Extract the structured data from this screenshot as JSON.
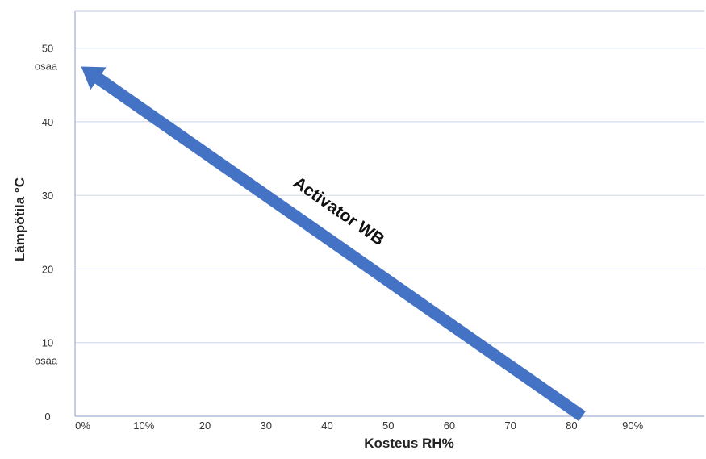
{
  "chart_data": {
    "type": "line",
    "title": "",
    "xlabel": "Kosteus RH%",
    "ylabel": "Lämpötila °C",
    "x_ticks": [
      {
        "value": 0,
        "label": "0%"
      },
      {
        "value": 10,
        "label": "10%"
      },
      {
        "value": 20,
        "label": "20"
      },
      {
        "value": 30,
        "label": "30"
      },
      {
        "value": 40,
        "label": "40"
      },
      {
        "value": 50,
        "label": "50"
      },
      {
        "value": 60,
        "label": "60"
      },
      {
        "value": 70,
        "label": "70"
      },
      {
        "value": 80,
        "label": "80"
      },
      {
        "value": 90,
        "label": "90%"
      }
    ],
    "y_ticks": [
      {
        "value": 0,
        "label": "0"
      },
      {
        "value": 10,
        "label": "10"
      },
      {
        "value": 20,
        "label": "20"
      },
      {
        "value": 30,
        "label": "30"
      },
      {
        "value": 40,
        "label": "40"
      },
      {
        "value": 50,
        "label": "50"
      }
    ],
    "y_annotations": [
      {
        "value": 50,
        "label": "osaa"
      },
      {
        "value": 10,
        "label": "osaa"
      }
    ],
    "xlim": [
      -1,
      102
    ],
    "ylim": [
      0,
      55
    ],
    "grid": "horizontal",
    "series": [
      {
        "name": "Activator WB",
        "x": [
          82,
          0
        ],
        "y": [
          0,
          47.5
        ],
        "color": "#4472C4",
        "style": "arrow"
      }
    ]
  }
}
